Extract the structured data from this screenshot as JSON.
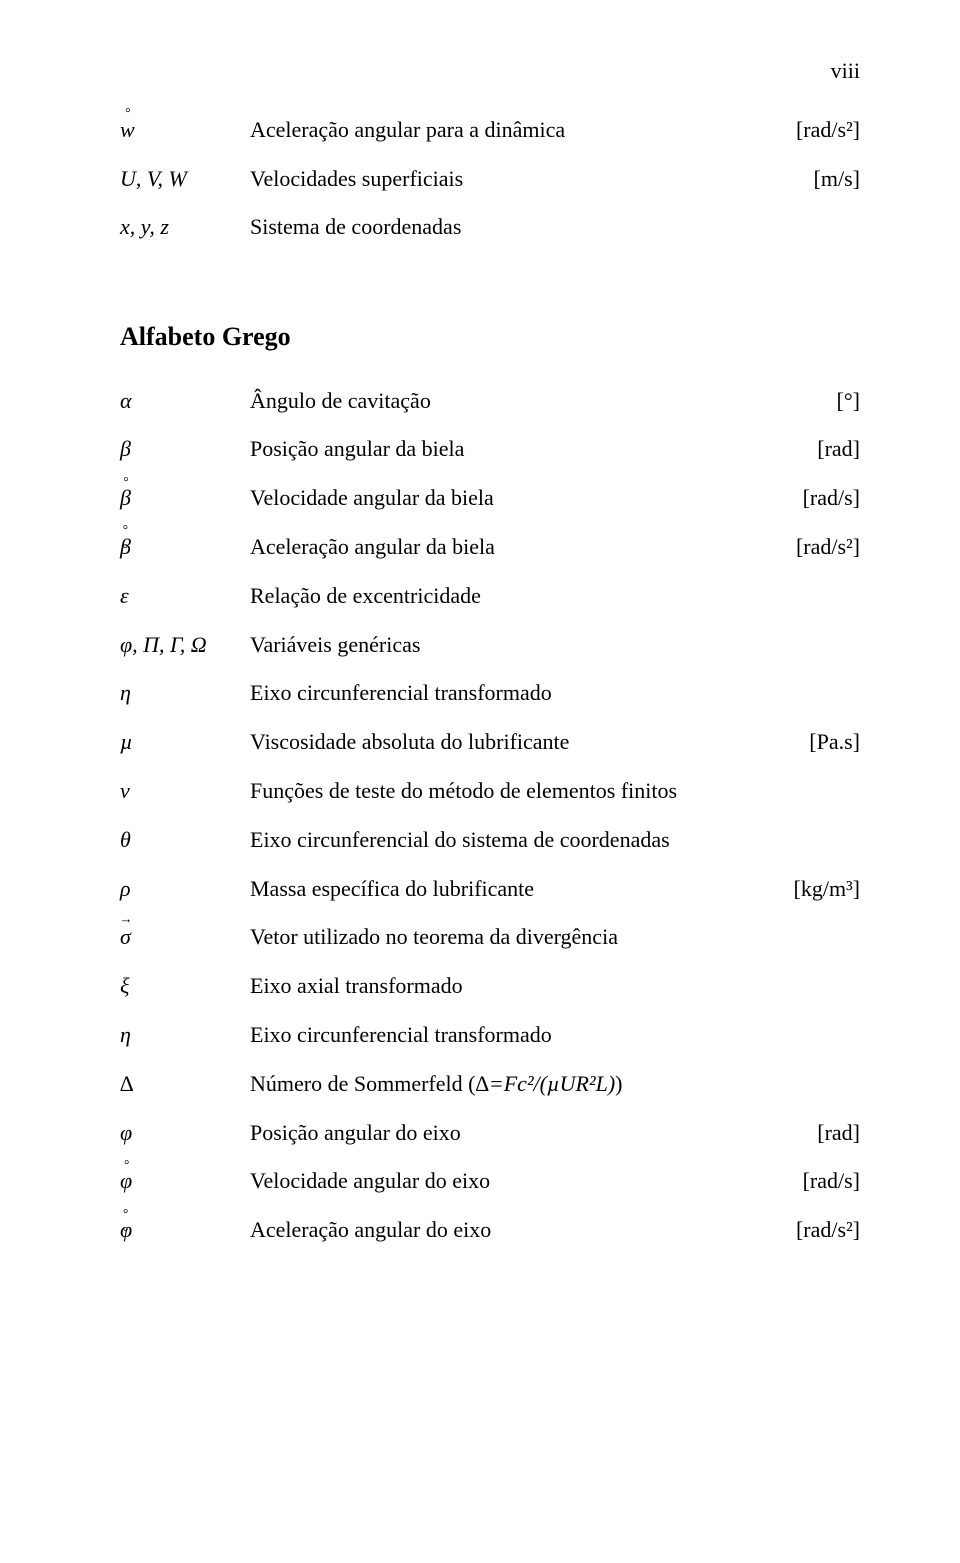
{
  "page_number_roman": "viii",
  "top_rows": [
    {
      "symbol_html": "<span class='ov'><span>w</span><span class='accent'>°</span></span>",
      "desc": "Aceleração angular para a dinâmica",
      "unit": "[rad/s²]"
    },
    {
      "symbol_html": "U, V, W",
      "desc": "Velocidades superficiais",
      "unit": "[m/s]"
    },
    {
      "symbol_html": "x, y, z",
      "desc": "Sistema de coordenadas",
      "unit": ""
    }
  ],
  "greek_heading": "Alfabeto Grego",
  "greek_rows": [
    {
      "symbol_html": "α",
      "desc": "Ângulo de cavitação",
      "unit": "[°]"
    },
    {
      "symbol_html": "β",
      "desc": "Posição angular da biela",
      "unit": "[rad]"
    },
    {
      "symbol_html": "<span class='ov'><span>β</span><span class='accent'>°</span></span>",
      "desc": "Velocidade angular da biela",
      "unit": "[rad/s]"
    },
    {
      "symbol_html": "<span class='ov'><span>β</span><span class='accent'>°°</span></span>",
      "desc": "Aceleração angular da biela",
      "unit": "[rad/s²]"
    },
    {
      "symbol_html": "ε",
      "desc": "Relação de excentricidade",
      "unit": ""
    },
    {
      "symbol_html": "φ, Π, Γ, Ω",
      "desc": "Variáveis genéricas",
      "unit": ""
    },
    {
      "symbol_html": "η",
      "desc": "Eixo circunferencial transformado",
      "unit": ""
    },
    {
      "symbol_html": "µ",
      "desc": "Viscosidade absoluta do lubrificante",
      "unit": "[Pa.s]"
    },
    {
      "symbol_html": "ν",
      "desc": "Funções de teste do método de elementos finitos",
      "unit": ""
    },
    {
      "symbol_html": "θ",
      "desc": "Eixo circunferencial do sistema de coordenadas",
      "unit": ""
    },
    {
      "symbol_html": "ρ",
      "desc": "Massa específica do lubrificante",
      "unit": "[kg/m³]"
    },
    {
      "symbol_html": "<span class='ov' style='font-style:italic'><span>σ</span><span class='accent' style='top:-0.95em'>→</span></span>",
      "desc": "Vetor utilizado no teorema da divergência",
      "unit": ""
    },
    {
      "symbol_html": "ξ",
      "desc": "Eixo axial transformado",
      "unit": ""
    },
    {
      "symbol_html": "η",
      "desc": "Eixo circunferencial transformado",
      "unit": ""
    },
    {
      "symbol_html": "∆",
      "desc_html": "Número de Sommerfeld (<span style='font-style:italic'>∆=Fc²/(µUR²L)</span>)",
      "unit": ""
    },
    {
      "symbol_html": "φ",
      "desc": "Posição angular do eixo",
      "unit": "[rad]"
    },
    {
      "symbol_html": "<span class='ov'><span>φ</span><span class='accent'>°</span></span>",
      "desc": "Velocidade angular do eixo",
      "unit": "[rad/s]"
    },
    {
      "symbol_html": "<span class='ov'><span>φ</span><span class='accent'>°°</span></span>",
      "desc": "Aceleração angular do eixo",
      "unit": "[rad/s²]"
    }
  ]
}
